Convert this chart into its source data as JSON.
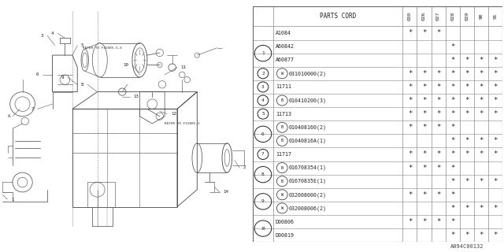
{
  "footer": "A094C00132",
  "table": {
    "rows": [
      {
        "item": "",
        "part": "A1084",
        "circle": "",
        "marks": [
          1,
          1,
          1,
          0,
          0,
          0,
          0
        ]
      },
      {
        "item": "1",
        "part": "A60842",
        "circle": "",
        "marks": [
          0,
          0,
          0,
          1,
          0,
          0,
          0
        ]
      },
      {
        "item": "",
        "part": "A60877",
        "circle": "",
        "marks": [
          0,
          0,
          0,
          1,
          1,
          1,
          1
        ]
      },
      {
        "item": "2",
        "part": "031010000(2)",
        "circle": "W",
        "marks": [
          1,
          1,
          1,
          1,
          1,
          1,
          1
        ]
      },
      {
        "item": "3",
        "part": "11711",
        "circle": "",
        "marks": [
          1,
          1,
          1,
          1,
          1,
          1,
          1
        ]
      },
      {
        "item": "4",
        "part": "010410200(3)",
        "circle": "B",
        "marks": [
          1,
          1,
          1,
          1,
          1,
          1,
          1
        ]
      },
      {
        "item": "5",
        "part": "11713",
        "circle": "",
        "marks": [
          1,
          1,
          1,
          1,
          1,
          1,
          1
        ]
      },
      {
        "item": "6",
        "part": "010408160(2)",
        "circle": "B",
        "marks": [
          1,
          1,
          1,
          1,
          0,
          0,
          0
        ]
      },
      {
        "item": "",
        "part": "01040816A(1)",
        "circle": "B",
        "marks": [
          0,
          0,
          0,
          1,
          1,
          1,
          1
        ]
      },
      {
        "item": "7",
        "part": "11717",
        "circle": "",
        "marks": [
          1,
          1,
          1,
          1,
          1,
          1,
          1
        ]
      },
      {
        "item": "8",
        "part": "016708354(1)",
        "circle": "B",
        "marks": [
          1,
          1,
          1,
          1,
          0,
          0,
          0
        ]
      },
      {
        "item": "",
        "part": "01670835E(1)",
        "circle": "B",
        "marks": [
          0,
          0,
          0,
          1,
          1,
          1,
          1
        ]
      },
      {
        "item": "9",
        "part": "032008000(2)",
        "circle": "W",
        "marks": [
          1,
          1,
          1,
          1,
          0,
          0,
          0
        ]
      },
      {
        "item": "",
        "part": "032008006(2)",
        "circle": "W",
        "marks": [
          0,
          0,
          0,
          1,
          1,
          1,
          1
        ]
      },
      {
        "item": "10",
        "part": "D00806",
        "circle": "",
        "marks": [
          1,
          1,
          1,
          1,
          0,
          0,
          0
        ]
      },
      {
        "item": "",
        "part": "D00819",
        "circle": "",
        "marks": [
          0,
          0,
          0,
          1,
          1,
          1,
          1
        ]
      }
    ],
    "years": [
      "030",
      "026",
      "027",
      "028",
      "029",
      "90",
      "91"
    ]
  },
  "bg_color": "#ffffff",
  "line_color": "#444444",
  "text_color": "#222222",
  "draw_bg": "#f8f8f8"
}
